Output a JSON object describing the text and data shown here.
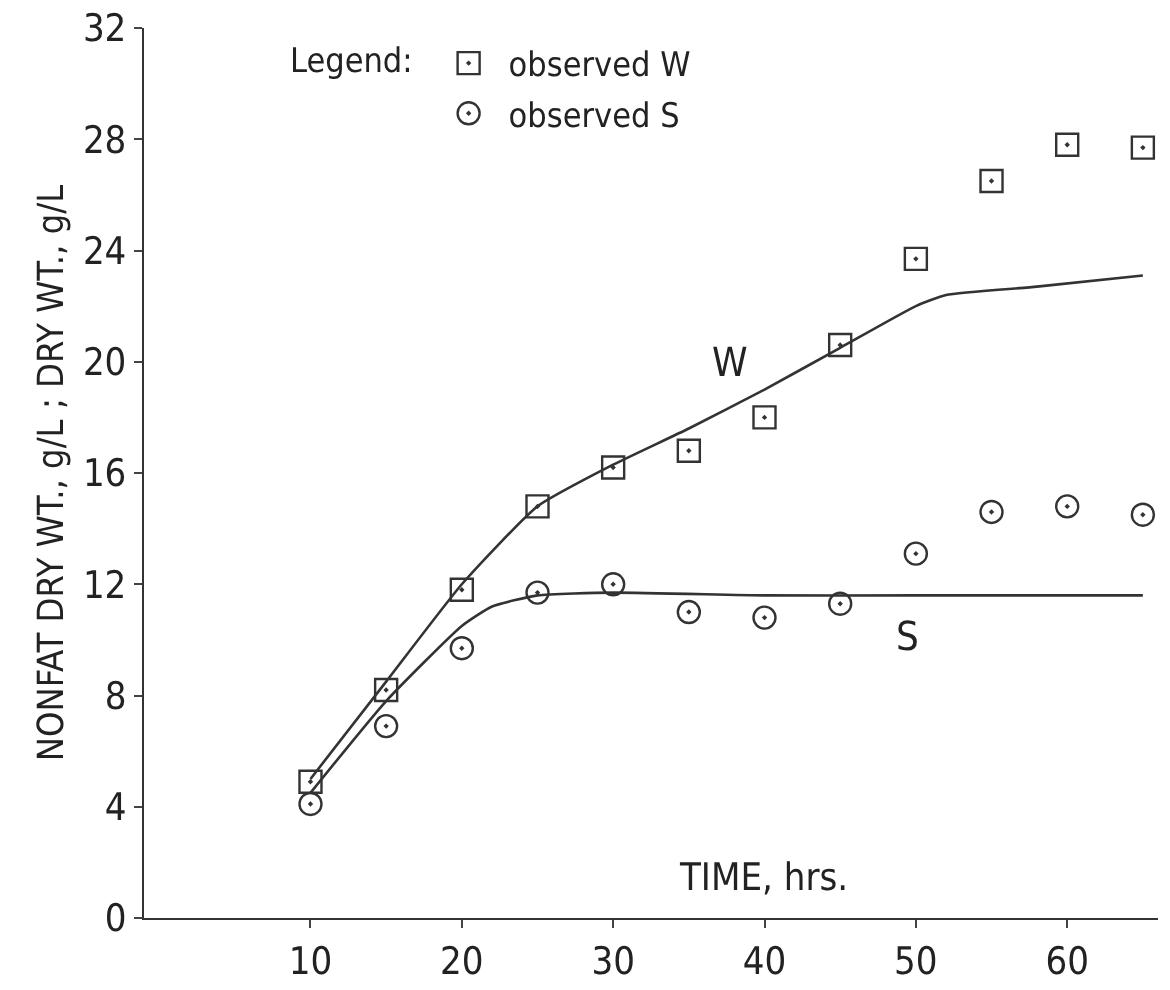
{
  "chart_data": {
    "type": "scatter",
    "xlabel": "TIME, hrs.",
    "ylabel": "NONFAT DRY WT., g/L ; DRY WT., g/L",
    "legend_title": "Legend:",
    "legend": "top left",
    "grid": false,
    "xlim": [
      -1,
      66
    ],
    "xticks": [
      10,
      20,
      30,
      40,
      50,
      60
    ],
    "ylim": [
      0,
      32
    ],
    "yticks": [
      0,
      4,
      8,
      12,
      16,
      20,
      24,
      28,
      32
    ],
    "series": [
      {
        "name": "observed W",
        "marker": "square",
        "color": "#333333",
        "x": [
          10,
          15,
          20,
          25,
          30,
          35,
          40,
          45,
          50,
          55,
          60,
          65
        ],
        "values": [
          4.9,
          8.2,
          11.8,
          14.8,
          16.2,
          16.8,
          18.0,
          20.6,
          23.7,
          26.5,
          27.8,
          27.7
        ]
      },
      {
        "name": "observed S",
        "marker": "circle",
        "color": "#333333",
        "x": [
          10,
          15,
          20,
          25,
          30,
          35,
          40,
          45,
          50,
          55,
          60,
          65
        ],
        "values": [
          4.1,
          6.9,
          9.7,
          11.7,
          12.0,
          11.0,
          10.8,
          11.3,
          13.1,
          14.6,
          14.8,
          14.5
        ]
      },
      {
        "type": "line",
        "marker": "none",
        "color": "#333333",
        "x": [
          10,
          15,
          20,
          25,
          30,
          35,
          40,
          45,
          50,
          52,
          58,
          65
        ],
        "values": [
          5.0,
          8.5,
          12.0,
          14.8,
          16.3,
          17.6,
          19.0,
          20.5,
          22.0,
          22.4,
          22.7,
          23.1
        ]
      },
      {
        "type": "line",
        "marker": "none",
        "color": "#333333",
        "x": [
          10,
          15,
          20,
          22,
          25,
          30,
          40,
          50,
          60,
          65
        ],
        "values": [
          4.5,
          7.8,
          10.5,
          11.2,
          11.6,
          11.7,
          11.6,
          11.6,
          11.6,
          11.6
        ]
      }
    ],
    "annotations": [
      "W",
      "S"
    ]
  }
}
